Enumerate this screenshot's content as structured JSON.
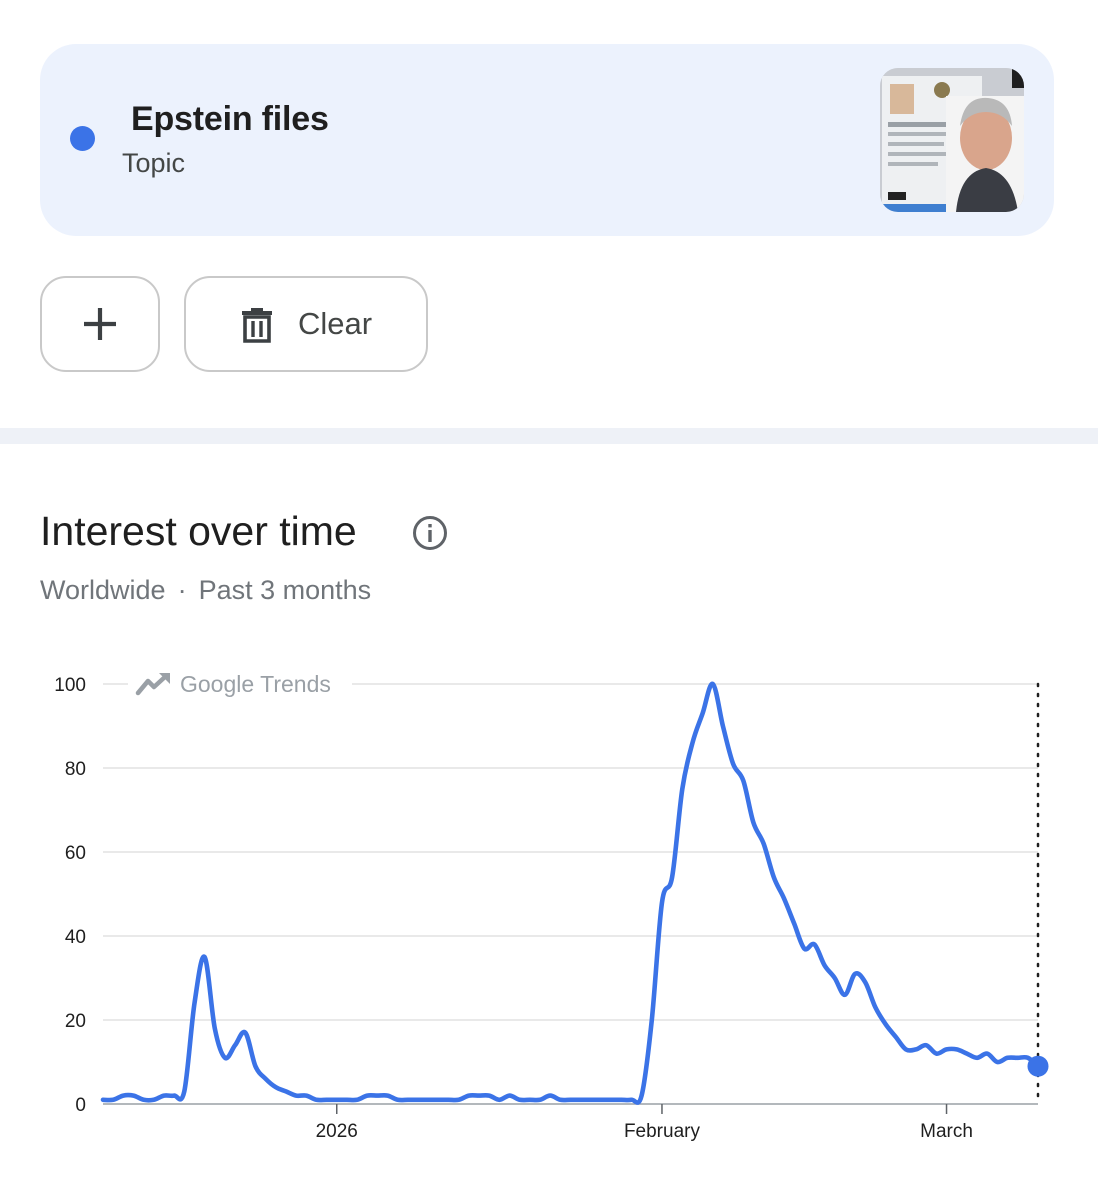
{
  "term": {
    "name": "Epstein files",
    "type": "Topic",
    "color": "#3b73e7",
    "thumbnail_icon": "person-photo-thumbnail"
  },
  "buttons": {
    "add_icon": "plus-icon",
    "clear_label": "Clear",
    "clear_icon": "trash-icon"
  },
  "section": {
    "title": "Interest over time",
    "info_icon": "info-icon",
    "region": "Worldwide",
    "separator": "·",
    "period": "Past 3 months"
  },
  "chart_watermark": "Google Trends",
  "chart_data": {
    "type": "line",
    "title": "Interest over time",
    "xlabel": "",
    "ylabel": "",
    "ylim": [
      0,
      100
    ],
    "yticks": [
      0,
      20,
      40,
      60,
      80,
      100
    ],
    "xticks": [
      {
        "label": "2026",
        "index": 23
      },
      {
        "label": "February",
        "index": 55
      },
      {
        "label": "March",
        "index": 83
      }
    ],
    "grid": true,
    "line_color": "#3b73e7",
    "partial_last_point": true,
    "series": [
      {
        "name": "Epstein files",
        "values": [
          1,
          1,
          2,
          2,
          1,
          1,
          2,
          2,
          3,
          24,
          35,
          18,
          11,
          14,
          17,
          9,
          6,
          4,
          3,
          2,
          2,
          1,
          1,
          1,
          1,
          1,
          2,
          2,
          2,
          1,
          1,
          1,
          1,
          1,
          1,
          1,
          2,
          2,
          2,
          1,
          2,
          1,
          1,
          1,
          2,
          1,
          1,
          1,
          1,
          1,
          1,
          1,
          1,
          2,
          20,
          48,
          54,
          75,
          86,
          93,
          100,
          90,
          81,
          77,
          67,
          62,
          54,
          49,
          43,
          37,
          38,
          33,
          30,
          26,
          31,
          29,
          23,
          19,
          16,
          13,
          13,
          14,
          12,
          13,
          13,
          12,
          11,
          12,
          10,
          11,
          11,
          11,
          9
        ]
      }
    ]
  }
}
